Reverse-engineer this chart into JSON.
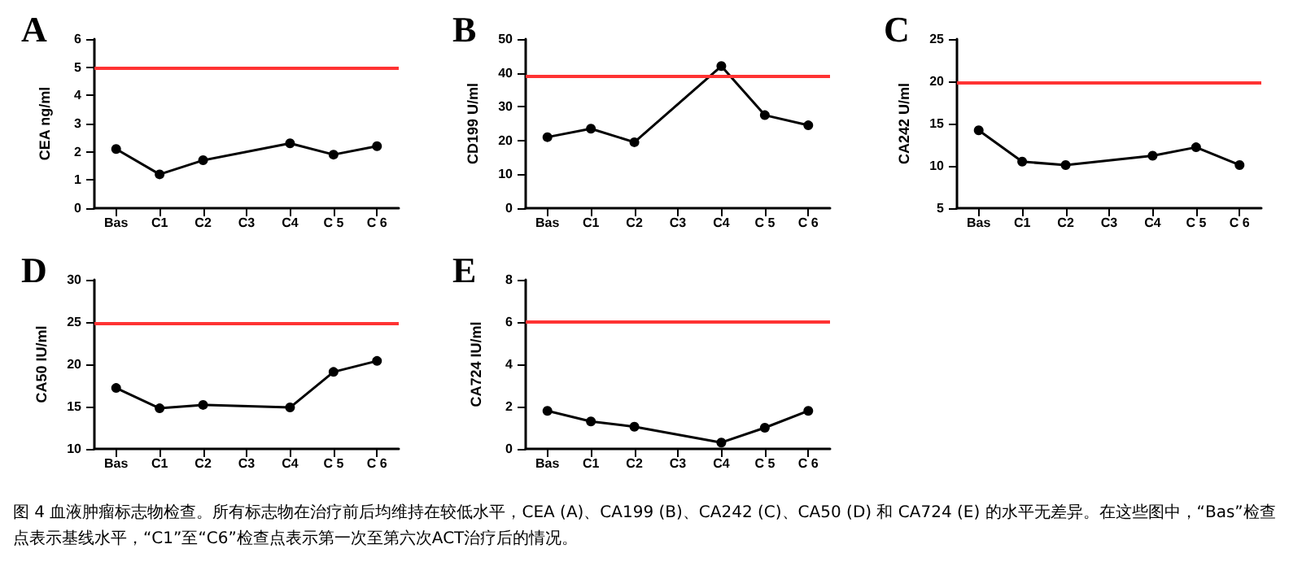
{
  "chart_data": [
    {
      "type": "line",
      "title": "A",
      "ylabel": "CEA ng/ml",
      "categories": [
        "Bas",
        "C1",
        "C2",
        "C3",
        "C4",
        "C 5",
        "C 6"
      ],
      "values": [
        2.1,
        1.2,
        1.7,
        null,
        2.3,
        1.9,
        2.2
      ],
      "color": "#000000",
      "marker": "circle",
      "ylim": [
        0,
        6
      ],
      "yticks": [
        0,
        1,
        2,
        3,
        4,
        5,
        6
      ],
      "ref_lines": [
        {
          "axis": "y",
          "value": 5,
          "color": "#ff3333"
        }
      ],
      "annotations": [
        "图 4 血液肿瘤标志物检查。所有标志物在治疗前后均维持在较低水平，CEA (A)、CA199 (B)、CA242 (C)、CA50 (D) 和 CA724 (E) 的水平无差异。在这些图中，“Bas”检查点表示基线水平，“C1”至“C6”检查点表示第一次至第六次ACT治疗后的情况。"
      ]
    },
    {
      "type": "line",
      "title": "B",
      "ylabel": "CD199 U/ml",
      "categories": [
        "Bas",
        "C1",
        "C2",
        "C3",
        "C4",
        "C 5",
        "C 6"
      ],
      "values": [
        21,
        23.5,
        19.5,
        null,
        42,
        27.5,
        24.5
      ],
      "color": "#000000",
      "marker": "circle",
      "ylim": [
        0,
        50
      ],
      "yticks": [
        0,
        10,
        20,
        30,
        40,
        50
      ],
      "ref_lines": [
        {
          "axis": "y",
          "value": 39,
          "color": "#ff3333"
        }
      ]
    },
    {
      "type": "line",
      "title": "C",
      "ylabel": "CA242 U/ml",
      "categories": [
        "Bas",
        "C1",
        "C2",
        "C3",
        "C4",
        "C 5",
        "C 6"
      ],
      "values": [
        14.2,
        10.5,
        10.1,
        null,
        11.2,
        12.2,
        10.1
      ],
      "color": "#000000",
      "marker": "circle",
      "ylim": [
        5,
        25
      ],
      "yticks": [
        5,
        10,
        15,
        20,
        25
      ],
      "ref_lines": [
        {
          "axis": "y",
          "value": 19.8,
          "color": "#ff3333"
        }
      ]
    },
    {
      "type": "line",
      "title": "D",
      "ylabel": "CA50 IU/ml",
      "categories": [
        "Bas",
        "C1",
        "C2",
        "C3",
        "C4",
        "C 5",
        "C 6"
      ],
      "values": [
        17.2,
        14.8,
        15.2,
        null,
        14.9,
        19.1,
        20.4
      ],
      "color": "#000000",
      "marker": "circle",
      "ylim": [
        10,
        30
      ],
      "yticks": [
        10,
        15,
        20,
        25,
        30
      ],
      "ref_lines": [
        {
          "axis": "y",
          "value": 24.8,
          "color": "#ff3333"
        }
      ]
    },
    {
      "type": "line",
      "title": "E",
      "ylabel": "CA724 IU/ml",
      "categories": [
        "Bas",
        "C1",
        "C2",
        "C3",
        "C4",
        "C 5",
        "C 6"
      ],
      "values": [
        1.8,
        1.3,
        1.05,
        null,
        0.3,
        1.0,
        1.8
      ],
      "color": "#000000",
      "marker": "circle",
      "ylim": [
        0,
        8
      ],
      "yticks": [
        0,
        2,
        4,
        6,
        8
      ],
      "ref_lines": [
        {
          "axis": "y",
          "value": 6,
          "color": "#ff3333"
        }
      ]
    }
  ]
}
